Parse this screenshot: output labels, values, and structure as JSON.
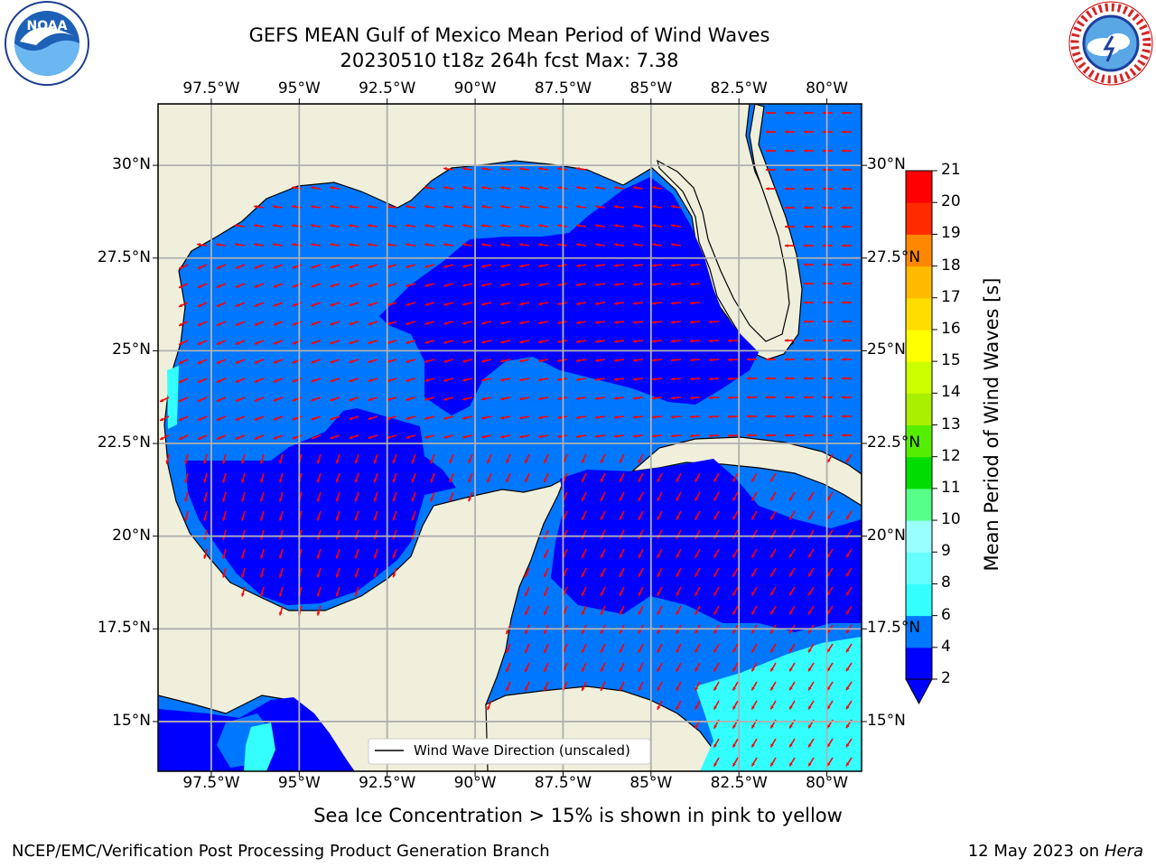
{
  "title": {
    "line1": "GEFS MEAN Gulf of Mexico Mean Period of Wind Waves",
    "line2": "20230510 t18z 264h fcst   Max: 7.38"
  },
  "logos": {
    "left": "noaa-logo",
    "right": "national-weather-service-logo"
  },
  "map": {
    "lon_range": [
      -98.5,
      -78.5
    ],
    "lat_range": [
      14,
      32
    ],
    "x_tick_labels": [
      "97.5°W",
      "95°W",
      "92.5°W",
      "90°W",
      "87.5°W",
      "85°W",
      "82.5°W",
      "80°W"
    ],
    "x_tick_values": [
      -97.5,
      -95,
      -92.5,
      -90,
      -87.5,
      -85,
      -82.5,
      -80
    ],
    "y_tick_labels_left": [
      "30°N",
      "27.5°N",
      "25°N",
      "22.5°N",
      "20°N",
      "17.5°N",
      "15°N"
    ],
    "y_tick_labels_right": [
      "30°N",
      "27.5°N",
      "25°N",
      "22.5°N",
      "20°N",
      "17.5°N",
      "15°N"
    ],
    "y_tick_values": [
      30,
      27.5,
      25,
      22.5,
      20,
      17.5,
      15
    ],
    "gridlines": true,
    "arrow_color": "#ff0000",
    "land_color": "#efefdc"
  },
  "legend": {
    "label": "Wind Wave Direction (unscaled)",
    "placement": "lower-center"
  },
  "colorbar": {
    "title": "Mean Period of Wind Waves [s]",
    "tick_labels": [
      "2",
      "4",
      "6",
      "8",
      "9",
      "10",
      "11",
      "12",
      "13",
      "14",
      "15",
      "16",
      "17",
      "18",
      "19",
      "20",
      "21"
    ],
    "colors": [
      "#0000ff",
      "#0077ff",
      "#00ddff",
      "#33ffff",
      "#66ffff",
      "#99ffff",
      "#55ff88",
      "#00ee55",
      "#00dd00",
      "#55ee00",
      "#aaee00",
      "#ccff00",
      "#eeff00",
      "#ffff00",
      "#ffdd00",
      "#ffbb00",
      "#ff8800",
      "#ff5500",
      "#ff2a00",
      "#ff0000"
    ],
    "under_color": "#0000ff"
  },
  "footer": {
    "ice_note": "Sea Ice Concentration > 15% is shown in pink to yellow",
    "credit": "NCEP/EMC/Verification Post Processing Product Generation Branch",
    "date": "12 May 2023 on",
    "machine": "Hera"
  }
}
